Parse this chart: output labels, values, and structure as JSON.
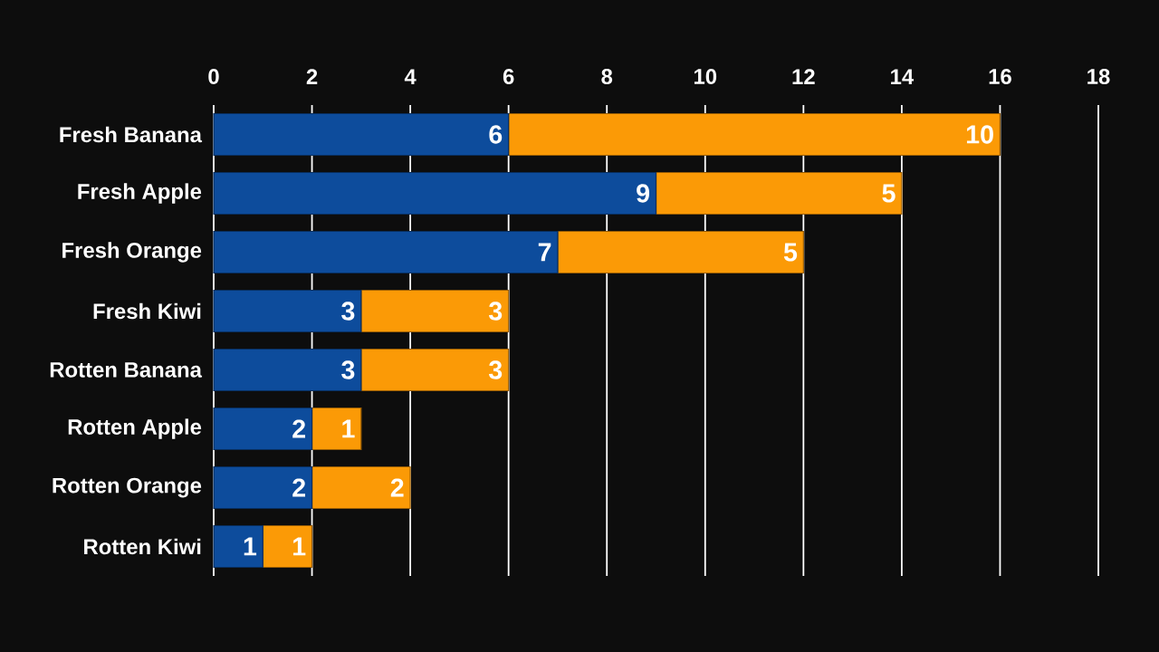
{
  "chart_data": {
    "type": "bar",
    "orientation": "horizontal",
    "stacked": true,
    "data_labels": true,
    "grid": "x",
    "categories": [
      "Fresh Banana",
      "Fresh Apple",
      "Fresh Orange",
      "Fresh Kiwi",
      "Rotten Banana",
      "Rotten Apple",
      "Rotten Orange",
      "Rotten Kiwi"
    ],
    "series": [
      {
        "color": "#0d4c9c",
        "values": [
          6,
          9,
          7,
          3,
          3,
          2,
          2,
          1
        ]
      },
      {
        "color": "#fb9a06",
        "values": [
          10,
          5,
          5,
          3,
          3,
          1,
          2,
          1
        ]
      }
    ],
    "xlim": [
      0,
      18
    ],
    "xticks": [
      0,
      2,
      4,
      6,
      8,
      10,
      12,
      14,
      16,
      18
    ]
  }
}
